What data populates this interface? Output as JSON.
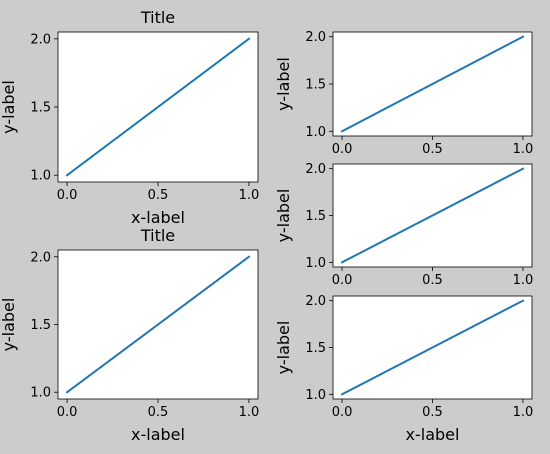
{
  "figure": {
    "background": "#cccccc"
  },
  "style": {
    "line_color": "#1f77b4",
    "axes_face": "#ffffff",
    "axes_edge": "#000000"
  },
  "chart_data": [
    {
      "type": "line",
      "title": "Title",
      "xlabel": "x-label",
      "ylabel": "y-label",
      "x": [
        0,
        1
      ],
      "series": [
        {
          "values": [
            1,
            2
          ]
        }
      ],
      "xlim": [
        -0.05,
        1.05
      ],
      "ylim": [
        0.95,
        2.05
      ],
      "xticks": [
        0.0,
        0.5,
        1.0
      ],
      "xtick_labels": [
        "0.0",
        "0.5",
        "1.0"
      ],
      "yticks": [
        1.0,
        1.5,
        2.0
      ],
      "ytick_labels": [
        "1.0",
        "1.5",
        "2.0"
      ],
      "grid": false
    },
    {
      "type": "line",
      "title": "Title",
      "xlabel": "x-label",
      "ylabel": "y-label",
      "x": [
        0,
        1
      ],
      "series": [
        {
          "values": [
            1,
            2
          ]
        }
      ],
      "xlim": [
        -0.05,
        1.05
      ],
      "ylim": [
        0.95,
        2.05
      ],
      "xticks": [
        0.0,
        0.5,
        1.0
      ],
      "xtick_labels": [
        "0.0",
        "0.5",
        "1.0"
      ],
      "yticks": [
        1.0,
        1.5,
        2.0
      ],
      "ytick_labels": [
        "1.0",
        "1.5",
        "2.0"
      ],
      "grid": false
    },
    {
      "type": "line",
      "title": "",
      "xlabel": "",
      "ylabel": "y-label",
      "x": [
        0,
        1
      ],
      "series": [
        {
          "values": [
            1,
            2
          ]
        }
      ],
      "xlim": [
        -0.05,
        1.05
      ],
      "ylim": [
        0.95,
        2.05
      ],
      "xticks": [
        0.0,
        0.5,
        1.0
      ],
      "xtick_labels": [
        "0.0",
        "0.5",
        "1.0"
      ],
      "yticks": [
        1.0,
        1.5,
        2.0
      ],
      "ytick_labels": [
        "1.0",
        "1.5",
        "2.0"
      ],
      "grid": false
    },
    {
      "type": "line",
      "title": "",
      "xlabel": "",
      "ylabel": "y-label",
      "x": [
        0,
        1
      ],
      "series": [
        {
          "values": [
            1,
            2
          ]
        }
      ],
      "xlim": [
        -0.05,
        1.05
      ],
      "ylim": [
        0.95,
        2.05
      ],
      "xticks": [
        0.0,
        0.5,
        1.0
      ],
      "xtick_labels": [
        "0.0",
        "0.5",
        "1.0"
      ],
      "yticks": [
        1.0,
        1.5,
        2.0
      ],
      "ytick_labels": [
        "1.0",
        "1.5",
        "2.0"
      ],
      "grid": false
    },
    {
      "type": "line",
      "title": "",
      "xlabel": "x-label",
      "ylabel": "y-label",
      "x": [
        0,
        1
      ],
      "series": [
        {
          "values": [
            1,
            2
          ]
        }
      ],
      "xlim": [
        -0.05,
        1.05
      ],
      "ylim": [
        0.95,
        2.05
      ],
      "xticks": [
        0.0,
        0.5,
        1.0
      ],
      "xtick_labels": [
        "0.0",
        "0.5",
        "1.0"
      ],
      "yticks": [
        1.0,
        1.5,
        2.0
      ],
      "ytick_labels": [
        "1.0",
        "1.5",
        "2.0"
      ],
      "grid": false
    }
  ]
}
